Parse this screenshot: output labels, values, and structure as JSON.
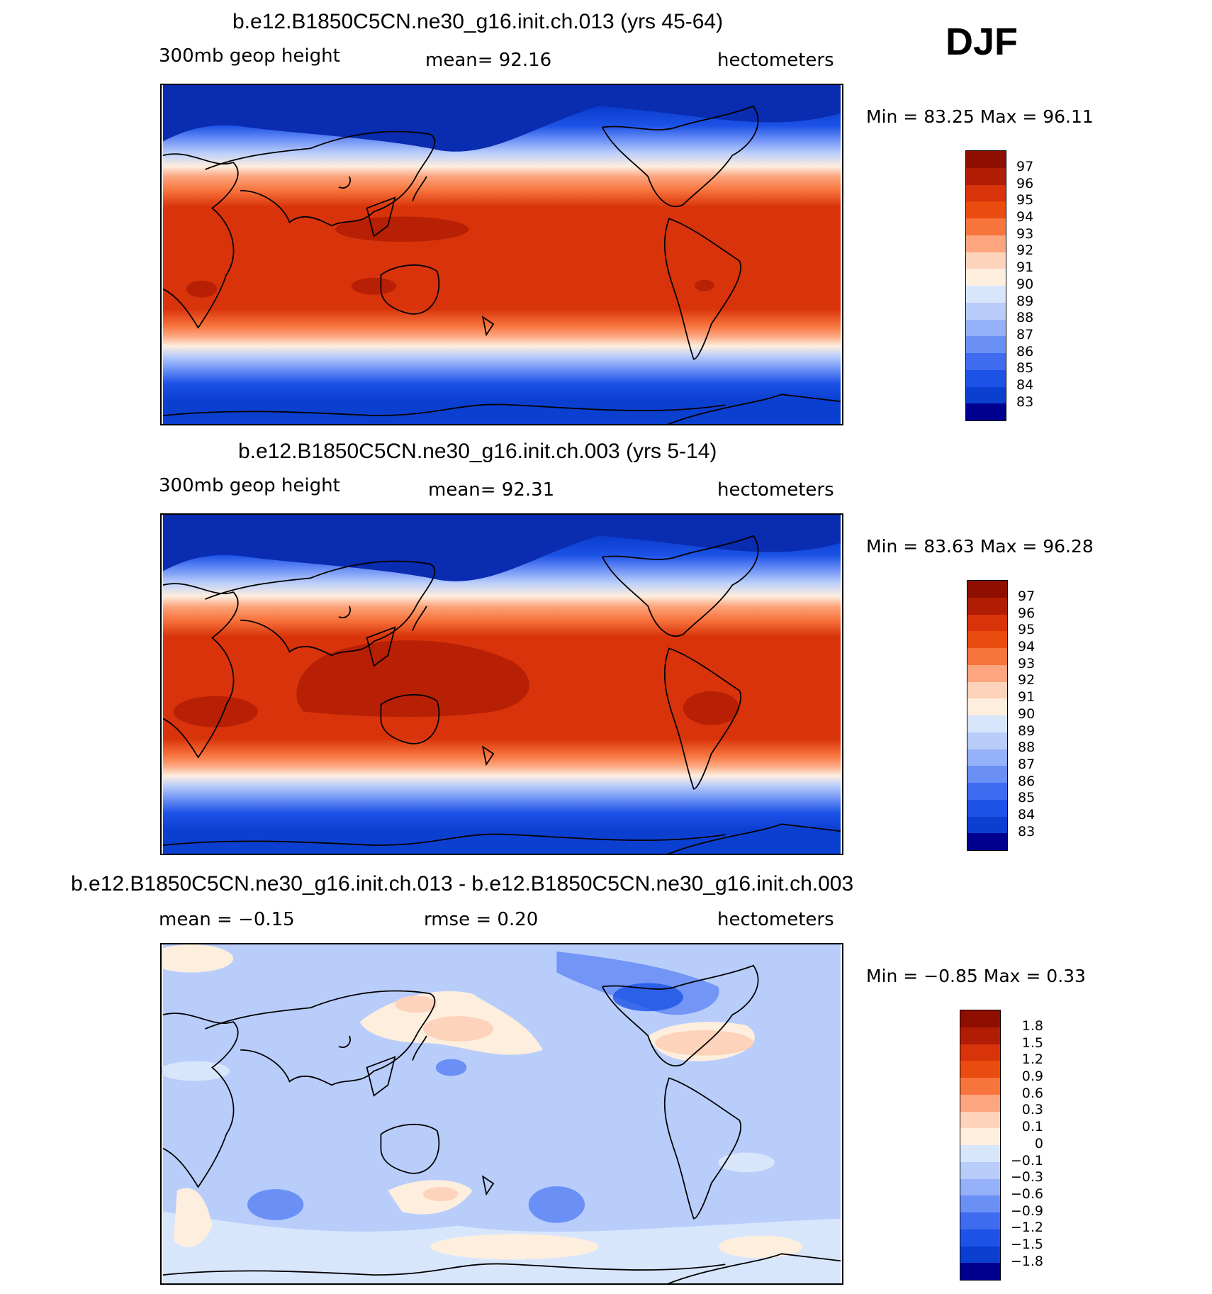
{
  "season": "DJF",
  "colors": {
    "abs_levels": [
      "#00008f",
      "#0a2cb0",
      "#0b3fd0",
      "#1c52e6",
      "#3e6bf0",
      "#6a8ff5",
      "#94b1f9",
      "#b9cdfb",
      "#d8e6fc",
      "#fdeede",
      "#fdd3bb",
      "#fca57e",
      "#f8743d",
      "#ea4b0e",
      "#d8330a",
      "#b11d04",
      "#8e0f00"
    ],
    "coast": "#000000"
  },
  "panels": [
    {
      "id": "case",
      "title": "b.e12.B1850C5CN.ne30_g16.init.ch.013 (yrs 45-64)",
      "left_label": "300mb geop height",
      "center_label": "mean=   92.16",
      "right_label": "hectometers",
      "minmax": "Min =   83.25 Max =   96.11",
      "colorbar": [
        "97",
        "96",
        "95",
        "94",
        "93",
        "92",
        "91",
        "90",
        "89",
        "88",
        "87",
        "86",
        "85",
        "84",
        "83"
      ]
    },
    {
      "id": "control",
      "title": "b.e12.B1850C5CN.ne30_g16.init.ch.003 (yrs 5-14)",
      "left_label": "300mb geop height",
      "center_label": "mean=   92.31",
      "right_label": "hectometers",
      "minmax": "Min =   83.63 Max =   96.28",
      "colorbar": [
        "97",
        "96",
        "95",
        "94",
        "93",
        "92",
        "91",
        "90",
        "89",
        "88",
        "87",
        "86",
        "85",
        "84",
        "83"
      ]
    },
    {
      "id": "difference",
      "title": "b.e12.B1850C5CN.ne30_g16.init.ch.013 - b.e12.B1850C5CN.ne30_g16.init.ch.003",
      "left_label": "mean =   −0.15",
      "center_label": "rmse =    0.20",
      "right_label": "hectometers",
      "minmax": "Min =   −0.85 Max =    0.33",
      "colorbar": [
        "1.8",
        "1.5",
        "1.2",
        "0.9",
        "0.6",
        "0.3",
        "0.1",
        "0",
        "−0.1",
        "−0.3",
        "−0.6",
        "−0.9",
        "−1.2",
        "−1.5",
        "−1.8"
      ]
    }
  ]
}
